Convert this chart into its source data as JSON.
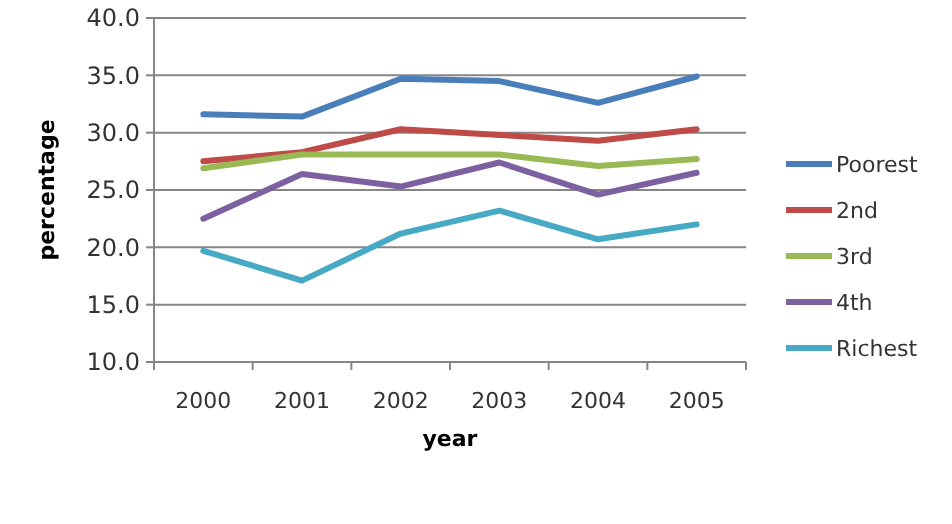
{
  "chart_data": {
    "type": "line",
    "xlabel": "year",
    "ylabel": "percentage",
    "categories": [
      "2000",
      "2001",
      "2002",
      "2003",
      "2004",
      "2005"
    ],
    "series": [
      {
        "name": "Poorest",
        "color": "#4a7ebb",
        "values": [
          31.6,
          31.4,
          34.7,
          34.5,
          32.6,
          34.9
        ]
      },
      {
        "name": "2nd",
        "color": "#be4b48",
        "values": [
          27.5,
          28.3,
          30.3,
          29.8,
          29.3,
          30.3
        ]
      },
      {
        "name": "3rd",
        "color": "#98b954",
        "values": [
          26.9,
          28.1,
          28.1,
          28.1,
          27.1,
          27.7
        ]
      },
      {
        "name": "4th",
        "color": "#7d60a0",
        "values": [
          22.5,
          26.4,
          25.3,
          27.4,
          24.6,
          26.5
        ]
      },
      {
        "name": "Richest",
        "color": "#46aac5",
        "values": [
          19.7,
          17.1,
          21.2,
          23.2,
          20.7,
          22.0
        ]
      }
    ],
    "ylim": [
      10,
      40
    ],
    "yticks": [
      {
        "value": 10,
        "label": "10.0"
      },
      {
        "value": 15,
        "label": "15.0"
      },
      {
        "value": 20,
        "label": "20.0"
      },
      {
        "value": 25,
        "label": "25.0"
      },
      {
        "value": 30,
        "label": "30.0"
      },
      {
        "value": 35,
        "label": "35.0"
      },
      {
        "value": 40,
        "label": "40.0"
      }
    ],
    "grid": "y",
    "legend": "right",
    "line_style": "solid"
  }
}
